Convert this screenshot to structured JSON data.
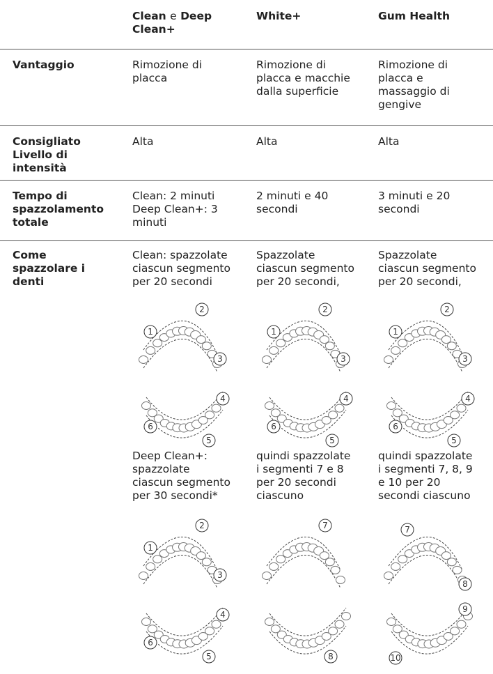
{
  "header": {
    "clean_parts": [
      "Clean",
      "e",
      "Deep Clean+"
    ],
    "white": "White+",
    "gum": "Gum Health"
  },
  "rows": [
    {
      "label": [
        "Vantaggio"
      ],
      "cells": [
        [
          "Rimozione di",
          "placca"
        ],
        [
          "Rimozione di",
          "placca e macchie",
          "dalla superficie"
        ],
        [
          "Rimozione di",
          "placca e",
          "massaggio di",
          "gengive"
        ]
      ]
    },
    {
      "label": [
        "Consigliato",
        "Livello di",
        "intensità"
      ],
      "cells": [
        [
          "Alta"
        ],
        [
          "Alta"
        ],
        [
          "Alta"
        ]
      ]
    },
    {
      "label": [
        "Tempo di",
        "spazzolamento",
        "totale"
      ],
      "cells": [
        [
          "Clean: 2 minuti",
          "Deep Clean+: 3",
          "minuti"
        ],
        [
          "2 minuti e 40",
          "secondi"
        ],
        [
          "3 minuti e 20",
          "secondi"
        ]
      ]
    }
  ],
  "brushing": {
    "label": [
      "Come",
      "spazzolare i",
      "denti"
    ],
    "cells": [
      {
        "intro": [
          "Clean: spazzolate",
          "ciascun segmento",
          "per 20 secondi"
        ],
        "diagrams_a": [
          [
            "1",
            "2",
            "3"
          ],
          [
            "4",
            "5",
            "6"
          ]
        ],
        "outro": [
          "Deep Clean+:",
          "spazzolate",
          "ciascun segmento",
          "per 30 secondi*"
        ],
        "diagrams_b": [
          [
            "1",
            "2",
            "3"
          ],
          [
            "4",
            "5",
            "6"
          ]
        ]
      },
      {
        "intro": [
          "Spazzolate",
          "ciascun segmento",
          "per 20 secondi,"
        ],
        "diagrams_a": [
          [
            "1",
            "2",
            "3"
          ],
          [
            "4",
            "5",
            "6"
          ]
        ],
        "outro": [
          "quindi spazzolate",
          "i segmenti 7 e 8",
          "per 20 secondi",
          "ciascuno"
        ],
        "diagrams_b": [
          [
            "7"
          ],
          [
            "8"
          ]
        ]
      },
      {
        "intro": [
          "Spazzolate",
          "ciascun segmento",
          "per 20 secondi,"
        ],
        "diagrams_a": [
          [
            "1",
            "2",
            "3"
          ],
          [
            "4",
            "5",
            "6"
          ]
        ],
        "outro": [
          "quindi spazzolate",
          "i segmenti 7, 8, 9",
          "e 10 per 20",
          "secondi ciascuno"
        ],
        "diagrams_b": [
          [
            "7",
            "8"
          ],
          [
            "9",
            "10"
          ]
        ]
      }
    ]
  }
}
